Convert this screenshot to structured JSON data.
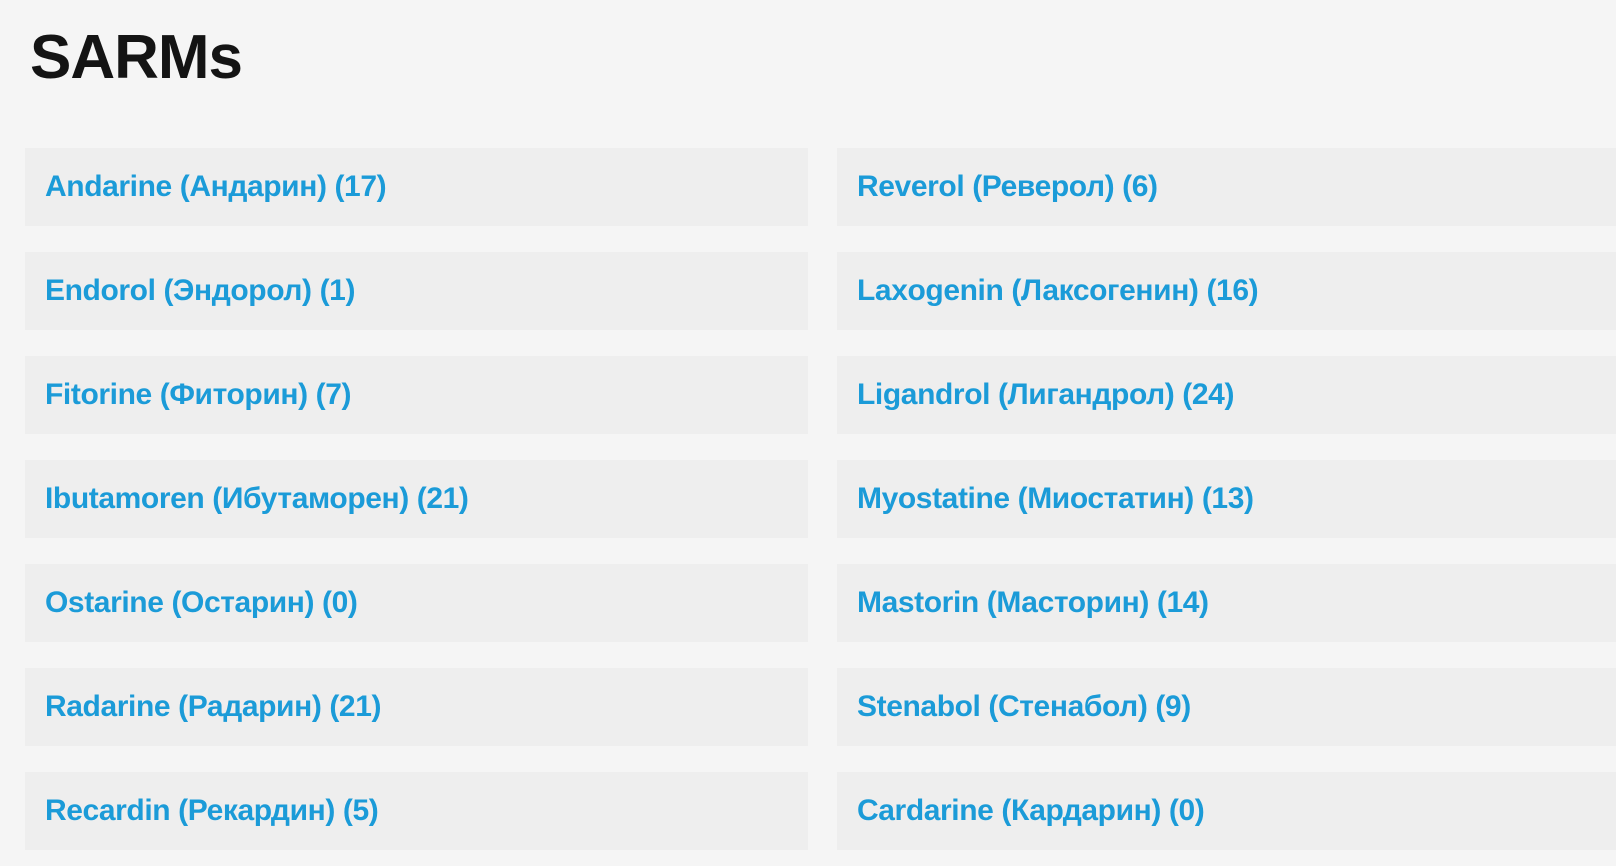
{
  "page": {
    "title": "SARMs"
  },
  "colors": {
    "page_background": "#f5f5f5",
    "row_background": "#eeeeee",
    "link_color": "#1b9bd8",
    "title_color": "#141414"
  },
  "categories": {
    "left": [
      {
        "label": "Andarine (Андарин) (17)",
        "count": 17
      },
      {
        "label": "Endorol (Эндорол) (1)",
        "count": 1
      },
      {
        "label": "Fitorine (Фиторин) (7)",
        "count": 7
      },
      {
        "label": "Ibutamoren (Ибутаморен) (21)",
        "count": 21
      },
      {
        "label": "Ostarine (Остарин) (0)",
        "count": 0
      },
      {
        "label": "Radarine (Радарин) (21)",
        "count": 21
      },
      {
        "label": "Recardin (Рекардин) (5)",
        "count": 5
      }
    ],
    "right": [
      {
        "label": "Reverol (Реверол) (6)",
        "count": 6
      },
      {
        "label": "Laxogenin (Лаксогенин) (16)",
        "count": 16
      },
      {
        "label": "Ligandrol (Лигандрол) (24)",
        "count": 24
      },
      {
        "label": "Myostatine (Миостатин) (13)",
        "count": 13
      },
      {
        "label": "Mastorin (Масторин) (14)",
        "count": 14
      },
      {
        "label": "Stenabol (Стенабол) (9)",
        "count": 9
      },
      {
        "label": "Cardarine (Кардарин) (0)",
        "count": 0
      }
    ]
  }
}
